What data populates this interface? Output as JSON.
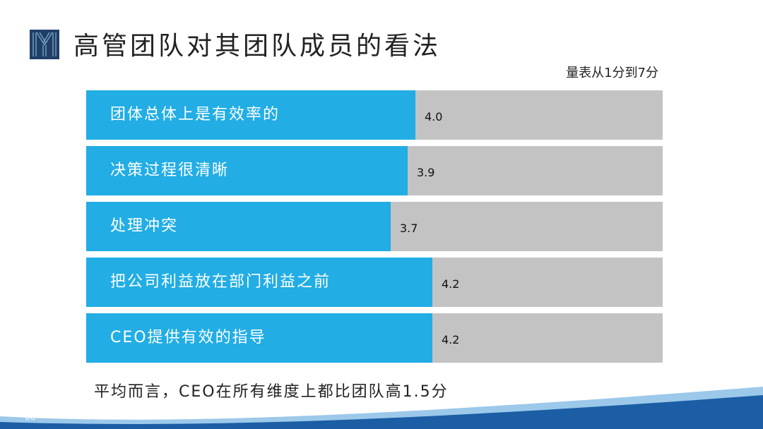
{
  "header": {
    "title": "高管团队对其团队成员的看法",
    "scale_note": "量表从1分到7分",
    "logo_icon": "y-logo-icon"
  },
  "chart_data": {
    "type": "bar",
    "orientation": "horizontal",
    "categories": [
      "团体总体上是有效率的",
      "决策过程很清晰",
      "处理冲突",
      "把公司利益放在部门利益之前",
      "CEO提供有效的指导"
    ],
    "values": [
      4.0,
      3.9,
      3.7,
      4.2,
      4.2
    ],
    "value_labels": [
      "4.0",
      "3.9",
      "3.7",
      "4.2",
      "4.2"
    ],
    "xlim": [
      0,
      7
    ],
    "title": "",
    "xlabel": "",
    "ylabel": ""
  },
  "summary": "平均而言，CEO在所有维度上都比团队高1.5分",
  "footer": {
    "page_number": "66"
  },
  "colors": {
    "bar_fill": "#22ade5",
    "bar_track": "#c3c3c3",
    "logo_dark": "#1f3f66",
    "wave_blue": "#1b5ea5"
  }
}
